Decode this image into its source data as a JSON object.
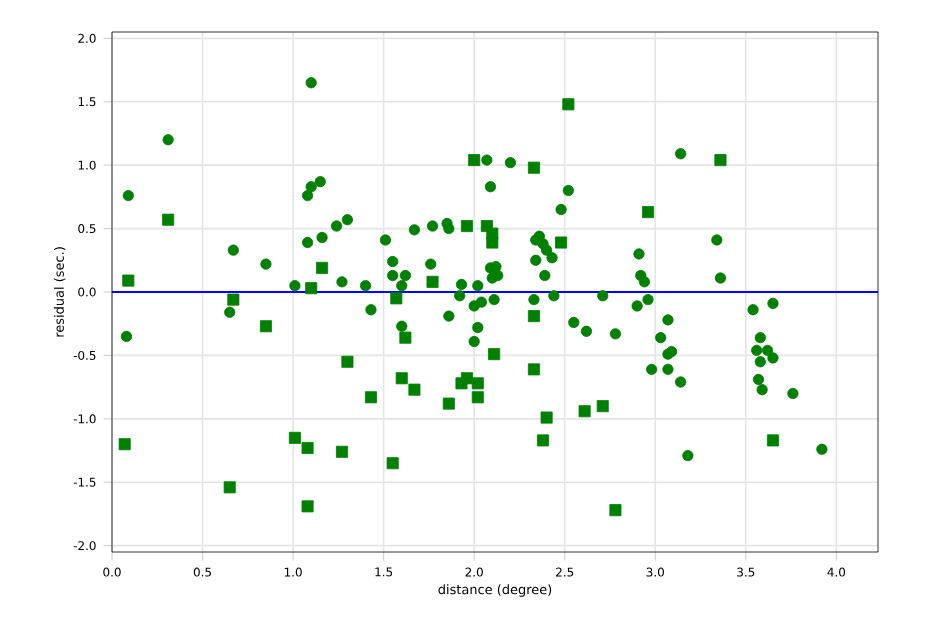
{
  "chart_data": {
    "type": "scatter",
    "xlabel": "distance (degree)",
    "ylabel": "residual (sec.)",
    "xlim": [
      0,
      4.23
    ],
    "ylim": [
      -2.05,
      2.05
    ],
    "xticks": [
      {
        "value": 0,
        "label": "0.0"
      },
      {
        "value": 0.5,
        "label": "0.5"
      },
      {
        "value": 1,
        "label": "1.0"
      },
      {
        "value": 1.5,
        "label": "1.5"
      },
      {
        "value": 2,
        "label": "2.0"
      },
      {
        "value": 2.5,
        "label": "2.5"
      },
      {
        "value": 3,
        "label": "3.0"
      },
      {
        "value": 3.5,
        "label": "3.5"
      },
      {
        "value": 4,
        "label": "4.0"
      }
    ],
    "yticks": [
      {
        "value": -2,
        "label": "-2.0"
      },
      {
        "value": -1.5,
        "label": "-1.5"
      },
      {
        "value": -1,
        "label": "-1.0"
      },
      {
        "value": -0.5,
        "label": "-0.5"
      },
      {
        "value": 0,
        "label": "0.0"
      },
      {
        "value": 0.5,
        "label": "0.5"
      },
      {
        "value": 1,
        "label": "1.0"
      },
      {
        "value": 1.5,
        "label": "1.5"
      },
      {
        "value": 2,
        "label": "2.0"
      }
    ],
    "grid": true,
    "ref_lines": [
      {
        "axis": "y",
        "value": 0,
        "color": "#0000ff"
      }
    ],
    "series": [
      {
        "color": "#008000",
        "marker": "circle",
        "x": [
          0.08,
          0.09,
          0.31,
          0.65,
          0.67,
          0.85,
          1.01,
          1.1,
          1.08,
          1.1,
          1.15,
          1.08,
          1.16,
          1.24,
          1.3,
          1.27,
          1.4,
          1.43,
          1.51,
          1.55,
          1.55,
          1.6,
          1.62,
          1.6,
          1.67,
          1.76,
          1.77,
          1.85,
          1.86,
          1.86,
          1.92,
          1.93,
          2.0,
          2.02,
          2.02,
          2.0,
          2.04,
          2.07,
          2.09,
          2.09,
          2.1,
          2.12,
          2.13,
          2.11,
          2.2,
          2.34,
          2.36,
          2.38,
          2.34,
          2.39,
          2.4,
          2.43,
          2.33,
          2.44,
          2.48,
          2.52,
          2.55,
          2.62,
          2.71,
          2.78,
          2.9,
          2.91,
          2.92,
          2.94,
          2.96,
          2.98,
          3.03,
          3.07,
          3.07,
          3.09,
          3.07,
          3.14,
          3.14,
          3.18,
          3.34,
          3.36,
          3.54,
          3.58,
          3.56,
          3.62,
          3.58,
          3.65,
          3.65,
          3.57,
          3.59,
          3.76,
          3.92
        ],
        "values": [
          -0.35,
          0.76,
          1.2,
          -0.16,
          0.33,
          0.22,
          0.05,
          1.65,
          0.76,
          0.83,
          0.87,
          0.39,
          0.43,
          0.52,
          0.57,
          0.08,
          0.05,
          -0.14,
          0.41,
          0.24,
          0.13,
          0.05,
          0.13,
          -0.27,
          0.49,
          0.22,
          0.52,
          0.54,
          0.5,
          -0.19,
          -0.03,
          0.06,
          -0.11,
          0.05,
          -0.28,
          -0.39,
          -0.08,
          1.04,
          0.83,
          0.19,
          0.11,
          0.2,
          0.13,
          -0.06,
          1.02,
          0.41,
          0.44,
          0.38,
          0.25,
          0.13,
          0.33,
          0.27,
          -0.06,
          -0.03,
          0.65,
          0.8,
          -0.24,
          -0.31,
          -0.03,
          -0.33,
          -0.11,
          0.3,
          0.13,
          0.08,
          -0.06,
          -0.61,
          -0.36,
          -0.22,
          -0.49,
          -0.47,
          -0.61,
          -0.71,
          1.09,
          -1.29,
          0.41,
          0.11,
          -0.14,
          -0.36,
          -0.46,
          -0.46,
          -0.55,
          -0.52,
          -0.09,
          -0.69,
          -0.77,
          -0.8,
          -1.24
        ]
      },
      {
        "color": "#008000",
        "marker": "square",
        "x": [
          0.09,
          0.31,
          0.67,
          0.85,
          0.07,
          0.65,
          1.01,
          1.08,
          1.08,
          1.16,
          1.1,
          1.27,
          1.3,
          1.43,
          1.55,
          1.57,
          1.6,
          1.62,
          1.67,
          1.77,
          1.86,
          1.96,
          1.93,
          1.96,
          2.02,
          2.02,
          2.0,
          2.07,
          2.1,
          2.1,
          2.11,
          2.33,
          2.33,
          2.33,
          2.4,
          2.38,
          2.48,
          2.52,
          2.61,
          2.71,
          2.78,
          2.96,
          3.36,
          3.65
        ],
        "values": [
          0.09,
          0.57,
          -0.06,
          -0.27,
          -1.2,
          -1.54,
          -1.15,
          -1.23,
          -1.69,
          0.19,
          0.03,
          -1.26,
          -0.55,
          -0.83,
          -1.35,
          -0.05,
          -0.68,
          -0.36,
          -0.77,
          0.08,
          -0.88,
          0.52,
          -0.72,
          -0.68,
          -0.72,
          -0.83,
          1.04,
          0.52,
          0.46,
          0.39,
          -0.49,
          0.98,
          -0.19,
          -0.61,
          -0.99,
          -1.17,
          0.39,
          1.48,
          -0.94,
          -0.9,
          -1.72,
          0.63,
          1.04,
          -1.17
        ]
      }
    ]
  }
}
